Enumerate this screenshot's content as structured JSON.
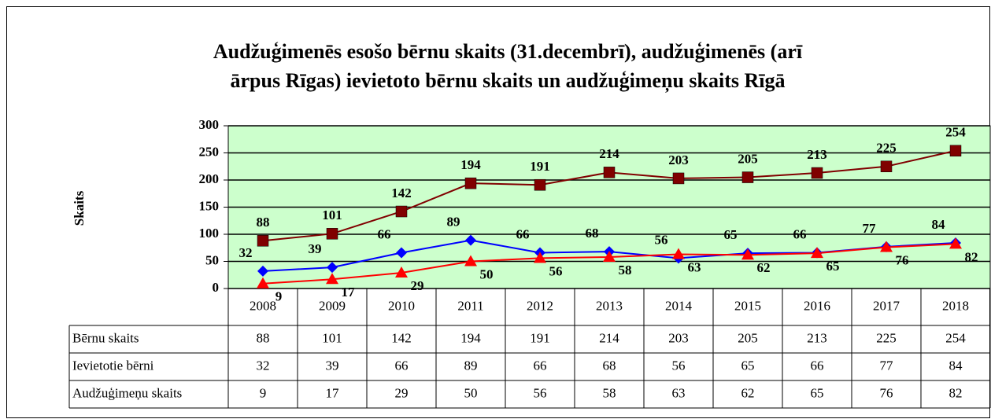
{
  "chart_data": {
    "type": "line",
    "title": [
      "Audžuģimenēs esošo bērnu skaits (31.decembrī), audžuģimenēs (arī",
      "ārpus Rīgas) ievietoto bērnu skaits un audžuģimeņu skaits Rīgā"
    ],
    "y_label": "Skaits",
    "categories": [
      "2008",
      "2009",
      "2010",
      "2011",
      "2012",
      "2013",
      "2014",
      "2015",
      "2016",
      "2017",
      "2018"
    ],
    "series": [
      {
        "name": "Bērnu skaits",
        "color": "#800000",
        "marker": "square",
        "values": [
          88,
          101,
          142,
          194,
          191,
          214,
          203,
          205,
          213,
          225,
          254
        ]
      },
      {
        "name": "Ievietotie bērni",
        "color": "#0000ff",
        "marker": "diamond",
        "values": [
          32,
          39,
          66,
          89,
          66,
          68,
          56,
          65,
          66,
          77,
          84
        ]
      },
      {
        "name": "Audžuģimeņu skaits",
        "color": "#ff0000",
        "marker": "triangle",
        "values": [
          9,
          17,
          29,
          50,
          56,
          58,
          63,
          62,
          65,
          76,
          82
        ]
      }
    ],
    "ylim": [
      0,
      300
    ],
    "yticks": [
      0,
      50,
      100,
      150,
      200,
      250,
      300
    ],
    "grid": true,
    "plot_background": "#ccffcc"
  }
}
